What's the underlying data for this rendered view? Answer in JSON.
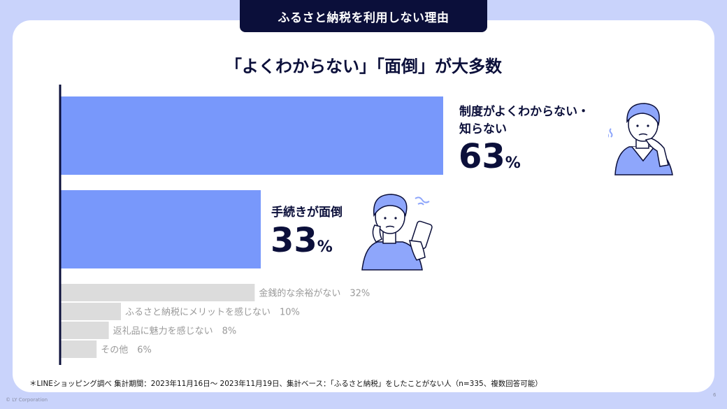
{
  "header": {
    "title": "ふるさと納税を利用しない理由"
  },
  "subtitle": "「よくわからない」「面倒」が大多数",
  "chart_data": {
    "type": "bar",
    "orientation": "horizontal",
    "unit": "%",
    "categories": [
      "制度がよくわからない・知らない",
      "手続きが面倒",
      "金銭的な余裕がない",
      "ふるさと納税にメリットを感じない",
      "返礼品に魅力を感じない",
      "その他"
    ],
    "values": [
      63,
      33,
      32,
      10,
      8,
      6
    ],
    "colors": {
      "highlight": "#7898fb",
      "other": "#dcdcdc",
      "axis": "#0b0f3a",
      "label_other": "#9a9a9a"
    },
    "highlight": [
      true,
      true,
      false,
      false,
      false,
      false
    ],
    "highlight_lines": [
      [
        "制度がよくわからない・",
        "知らない"
      ],
      [
        "手続きが面倒"
      ]
    ],
    "xlim": [
      0,
      63
    ]
  },
  "footnote": "＊LINEショッピング調べ 集計期間：2023年11月16日〜 2023年11月19日、集計ベース：「ふるさと納税」をしたことがない人（n=335、複数回答可能）",
  "copyright": "© LY Corporation",
  "page_number": "6",
  "illustrations": {
    "first": "thinking-person-icon",
    "second": "person-with-phone-icon"
  }
}
